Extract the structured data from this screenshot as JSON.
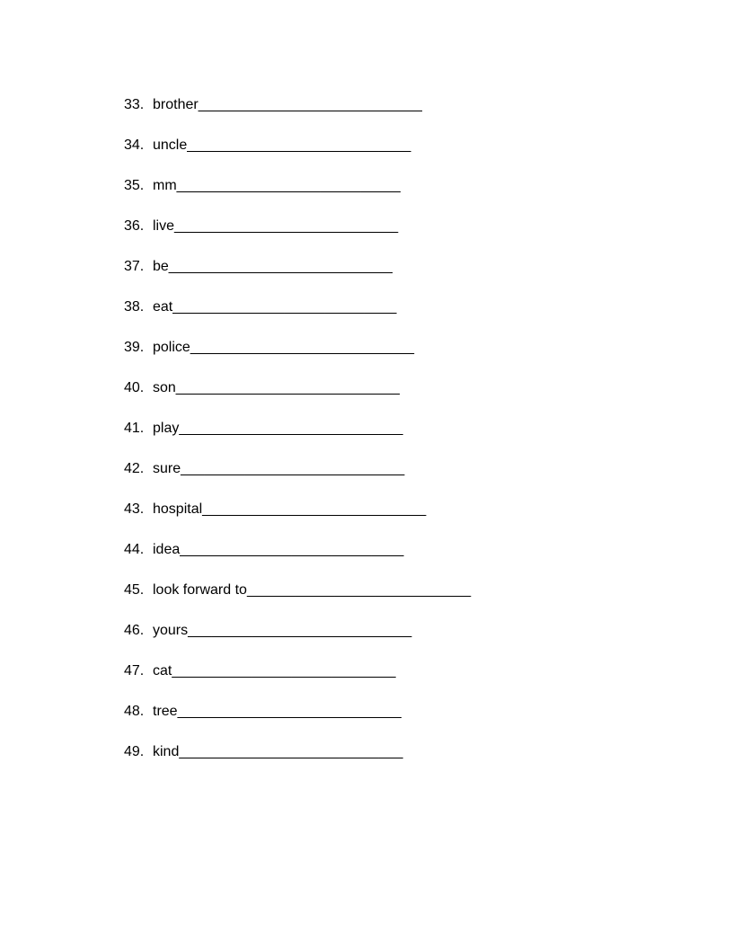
{
  "worksheet": {
    "items": [
      {
        "number": "33.",
        "word": "brother",
        "blank": "____________________________"
      },
      {
        "number": "34.",
        "word": "uncle",
        "blank": "____________________________"
      },
      {
        "number": "35.",
        "word": "mm",
        "blank": "____________________________"
      },
      {
        "number": "36.",
        "word": "live",
        "blank": "____________________________"
      },
      {
        "number": "37.",
        "word": "be",
        "blank": "____________________________"
      },
      {
        "number": "38.",
        "word": "eat",
        "blank": "____________________________"
      },
      {
        "number": "39.",
        "word": "police",
        "blank": "____________________________"
      },
      {
        "number": "40.",
        "word": "son",
        "blank": "____________________________"
      },
      {
        "number": "41.",
        "word": "play",
        "blank": "____________________________"
      },
      {
        "number": "42.",
        "word": "sure",
        "blank": "____________________________"
      },
      {
        "number": "43.",
        "word": "hospital",
        "blank": "____________________________"
      },
      {
        "number": "44.",
        "word": "idea",
        "blank": "____________________________"
      },
      {
        "number": "45.",
        "word": "look forward to",
        "blank": "____________________________"
      },
      {
        "number": "46.",
        "word": "yours",
        "blank": "____________________________"
      },
      {
        "number": "47.",
        "word": "cat",
        "blank": "____________________________"
      },
      {
        "number": "48.",
        "word": "tree",
        "blank": "____________________________"
      },
      {
        "number": "49.",
        "word": "kind",
        "blank": "____________________________"
      }
    ],
    "text_color": "#000000",
    "background_color": "#ffffff",
    "font_size": 16
  }
}
